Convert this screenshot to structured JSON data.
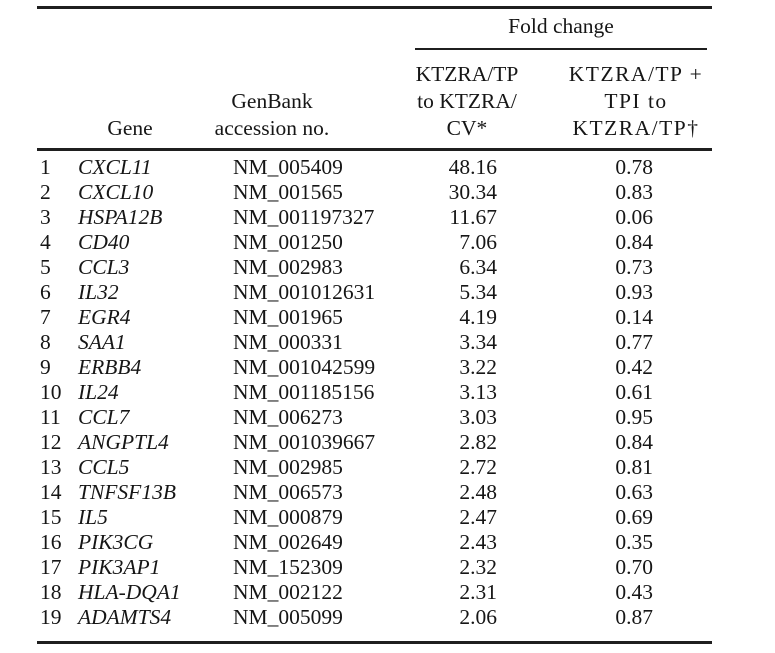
{
  "table": {
    "spanner": "Fold change",
    "columns": {
      "gene": "Gene",
      "genbank": "GenBank\naccession no.",
      "fc1": "KTZRA/TP\nto KTZRA/\nCV*",
      "fc2": "KTZRA/TP +\nTPI to\nKTZRA/TP†"
    },
    "rows": [
      {
        "n": "1",
        "gene": "CXCL11",
        "acc": "NM_005409",
        "fc1": "48.16",
        "fc2": "0.78"
      },
      {
        "n": "2",
        "gene": "CXCL10",
        "acc": "NM_001565",
        "fc1": "30.34",
        "fc2": "0.83"
      },
      {
        "n": "3",
        "gene": "HSPA12B",
        "acc": "NM_001197327",
        "fc1": "11.67",
        "fc2": "0.06"
      },
      {
        "n": "4",
        "gene": "CD40",
        "acc": "NM_001250",
        "fc1": "7.06",
        "fc2": "0.84"
      },
      {
        "n": "5",
        "gene": "CCL3",
        "acc": "NM_002983",
        "fc1": "6.34",
        "fc2": "0.73"
      },
      {
        "n": "6",
        "gene": "IL32",
        "acc": "NM_001012631",
        "fc1": "5.34",
        "fc2": "0.93"
      },
      {
        "n": "7",
        "gene": "EGR4",
        "acc": "NM_001965",
        "fc1": "4.19",
        "fc2": "0.14"
      },
      {
        "n": "8",
        "gene": "SAA1",
        "acc": "NM_000331",
        "fc1": "3.34",
        "fc2": "0.77"
      },
      {
        "n": "9",
        "gene": "ERBB4",
        "acc": "NM_001042599",
        "fc1": "3.22",
        "fc2": "0.42"
      },
      {
        "n": "10",
        "gene": "IL24",
        "acc": "NM_001185156",
        "fc1": "3.13",
        "fc2": "0.61"
      },
      {
        "n": "11",
        "gene": "CCL7",
        "acc": "NM_006273",
        "fc1": "3.03",
        "fc2": "0.95"
      },
      {
        "n": "12",
        "gene": "ANGPTL4",
        "acc": "NM_001039667",
        "fc1": "2.82",
        "fc2": "0.84"
      },
      {
        "n": "13",
        "gene": "CCL5",
        "acc": "NM_002985",
        "fc1": "2.72",
        "fc2": "0.81"
      },
      {
        "n": "14",
        "gene": "TNFSF13B",
        "acc": "NM_006573",
        "fc1": "2.48",
        "fc2": "0.63"
      },
      {
        "n": "15",
        "gene": "IL5",
        "acc": "NM_000879",
        "fc1": "2.47",
        "fc2": "0.69"
      },
      {
        "n": "16",
        "gene": "PIK3CG",
        "acc": "NM_002649",
        "fc1": "2.43",
        "fc2": "0.35"
      },
      {
        "n": "17",
        "gene": "PIK3AP1",
        "acc": "NM_152309",
        "fc1": "2.32",
        "fc2": "0.70"
      },
      {
        "n": "18",
        "gene": "HLA-DQA1",
        "acc": "NM_002122",
        "fc1": "2.31",
        "fc2": "0.43"
      },
      {
        "n": "19",
        "gene": "ADAMTS4",
        "acc": "NM_005099",
        "fc1": "2.06",
        "fc2": "0.87"
      }
    ]
  },
  "colors": {
    "text": "#161616",
    "rule": "#1f1f1f",
    "background": "#ffffff"
  }
}
